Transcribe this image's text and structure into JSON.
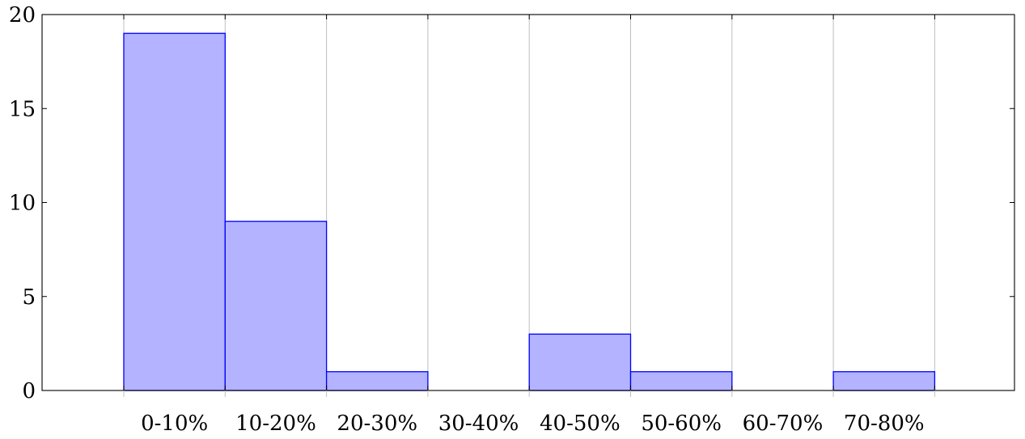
{
  "chart_data": {
    "type": "bar",
    "categories": [
      "0-10%",
      "10-20%",
      "20-30%",
      "30-40%",
      "40-50%",
      "50-60%",
      "60-70%",
      "70-80%"
    ],
    "values": [
      19,
      9,
      1,
      0,
      3,
      1,
      0,
      1
    ],
    "title": "",
    "xlabel": "",
    "ylabel": "",
    "ylim": [
      0,
      20
    ],
    "yticks": [
      0,
      5,
      10,
      15,
      20
    ],
    "grid": "vertical",
    "legend": "none",
    "colors": {
      "bar_fill": "#b3b3ff",
      "bar_stroke": "#0000ff",
      "grid": "#bfbfbf",
      "axis": "#000000"
    }
  }
}
